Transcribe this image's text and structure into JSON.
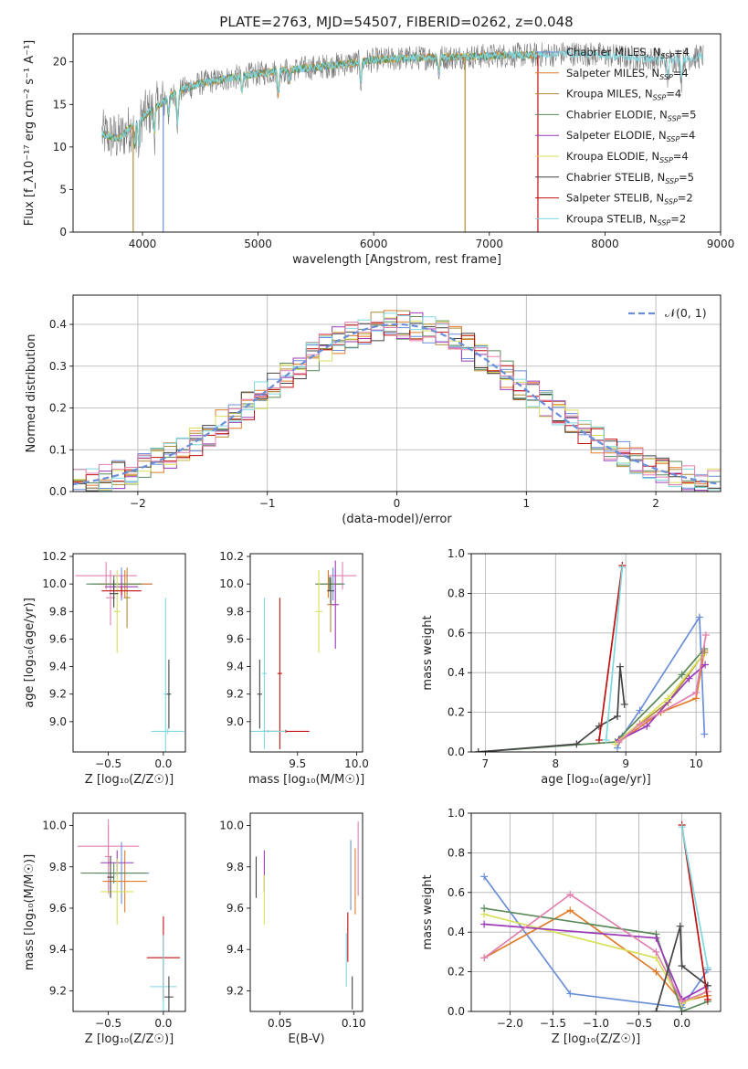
{
  "title": "PLATE=2763, MJD=54507, FIBERID=0262, z=0.048",
  "colors": {
    "cm": "#6a8fd8",
    "sm": "#e07b2a",
    "km": "#b08a3a",
    "ce": "#5a8a5a",
    "se": "#9a3ab8",
    "ke": "#d8e05a",
    "cs": "#444444",
    "ss": "#c01010",
    "ks": "#7fd8e0",
    "pink": "#e080b0",
    "grid": "#b0b0b0"
  },
  "chart_data": [
    {
      "type": "line",
      "id": "spectrum",
      "xlabel": "wavelength [Angstrom, rest frame]",
      "ylabel": "Flux [f_λ10⁻¹⁷ erg cm⁻² s⁻¹ A⁻¹]",
      "xlim": [
        3400,
        9000
      ],
      "ylim": [
        0,
        23.3
      ],
      "xticks": [
        4000,
        5000,
        6000,
        7000,
        8000,
        9000
      ],
      "yticks": [
        0,
        5,
        10,
        15,
        20
      ],
      "grid": false,
      "legend_position": "top-right",
      "legend": [
        {
          "label": "Chabrier MILES, N_SSP=4",
          "key": "cm"
        },
        {
          "label": "Salpeter MILES, N_SSP=4",
          "key": "sm"
        },
        {
          "label": "Kroupa MILES, N_SSP=4",
          "key": "km"
        },
        {
          "label": "Chabrier ELODIE, N_SSP=5",
          "key": "ce"
        },
        {
          "label": "Salpeter ELODIE, N_SSP=4",
          "key": "se"
        },
        {
          "label": "Kroupa ELODIE, N_SSP=4",
          "key": "ke"
        },
        {
          "label": "Chabrier STELIB, N_SSP=5",
          "key": "cs"
        },
        {
          "label": "Salpeter STELIB, N_SSP=2",
          "key": "ss"
        },
        {
          "label": "Kroupa STELIB, N_SSP=2",
          "key": "ks"
        }
      ],
      "continuum": [
        [
          3650,
          11.5
        ],
        [
          3800,
          11
        ],
        [
          3950,
          13
        ],
        [
          4100,
          14.5
        ],
        [
          4300,
          16.5
        ],
        [
          4500,
          17.5
        ],
        [
          4800,
          18.2
        ],
        [
          5200,
          19
        ],
        [
          5600,
          19.5
        ],
        [
          6000,
          20.2
        ],
        [
          6400,
          20.5
        ],
        [
          6800,
          20.6
        ],
        [
          7200,
          20.8
        ],
        [
          7420,
          20.8
        ],
        [
          7700,
          21
        ],
        [
          8000,
          20.8
        ],
        [
          8300,
          20.4
        ],
        [
          8600,
          20.2
        ],
        [
          8850,
          20.7
        ]
      ],
      "absorption_lines": [
        [
          3934,
          3
        ],
        [
          3969,
          3.5
        ],
        [
          4102,
          3
        ],
        [
          4227,
          2
        ],
        [
          4304,
          4
        ],
        [
          4861,
          2
        ],
        [
          5175,
          3
        ],
        [
          5270,
          1.5
        ],
        [
          5890,
          2.5
        ],
        [
          6563,
          2
        ],
        [
          8542,
          2.5
        ],
        [
          8662,
          2.5
        ]
      ],
      "full_drops": [
        {
          "x": 3920,
          "key": "km"
        },
        {
          "x": 4180,
          "key": "cm"
        },
        {
          "x": 6790,
          "key": "km"
        },
        {
          "x": 7420,
          "key": "ss"
        }
      ],
      "model_end": 7420,
      "noise_amplitude": 1.5
    },
    {
      "type": "histogram",
      "id": "residuals",
      "xlabel": "(data-model)/error",
      "ylabel": "Normed distribution",
      "xlim": [
        -2.5,
        2.5
      ],
      "ylim": [
        0,
        0.47
      ],
      "xticks": [
        -2,
        -1,
        0,
        1,
        2
      ],
      "yticks": [
        0.0,
        0.1,
        0.2,
        0.3,
        0.4
      ],
      "grid": true,
      "bin_width": 0.1,
      "reference_curve": {
        "label": "𝒩(0, 1)",
        "mean": 0,
        "sigma": 1,
        "peak": 0.4,
        "style": "dashed"
      },
      "legend_position": "top-right"
    },
    {
      "type": "scatter",
      "id": "age_vs_Z",
      "xlabel": "Z [log₁₀(Z/Z☉)]",
      "ylabel": "age  [log₁₀(age/yr)]",
      "xlim": [
        -0.82,
        0.2
      ],
      "ylim": [
        8.78,
        10.22
      ],
      "xticks": [
        -0.5,
        0.0
      ],
      "yticks": [
        9.0,
        9.2,
        9.4,
        9.6,
        9.8,
        10.0,
        10.2
      ],
      "grid": false,
      "points": [
        {
          "x": -0.52,
          "y": 10.06,
          "xerr": 0.28,
          "yerr": 0.1,
          "key": "pink"
        },
        {
          "x": -0.48,
          "y": 9.9,
          "xerr": 0.04,
          "yerr": 0.2,
          "key": "pink"
        },
        {
          "x": -0.38,
          "y": 10.0,
          "xerr": 0.28,
          "yerr": 0.12,
          "key": "cm"
        },
        {
          "x": -0.35,
          "y": 10.0,
          "xerr": 0.25,
          "yerr": 0.1,
          "key": "sm"
        },
        {
          "x": -0.33,
          "y": 9.9,
          "xerr": 0.03,
          "yerr": 0.22,
          "key": "km"
        },
        {
          "x": -0.45,
          "y": 10.0,
          "xerr": 0.25,
          "yerr": 0.06,
          "key": "ce"
        },
        {
          "x": -0.38,
          "y": 9.98,
          "xerr": 0.15,
          "yerr": 0.08,
          "key": "se"
        },
        {
          "x": -0.42,
          "y": 9.8,
          "xerr": 0.03,
          "yerr": 0.3,
          "key": "ke"
        },
        {
          "x": -0.45,
          "y": 9.93,
          "xerr": 0.04,
          "yerr": 0.1,
          "key": "cs"
        },
        {
          "x": -0.38,
          "y": 9.95,
          "xerr": 0.18,
          "yerr": 0.03,
          "key": "ss"
        },
        {
          "x": 0.02,
          "y": 9.2,
          "xerr": 0.02,
          "yerr": 0.7,
          "key": "ks"
        },
        {
          "x": 0.05,
          "y": 9.2,
          "xerr": 0.02,
          "yerr": 0.25,
          "key": "cs"
        },
        {
          "x": 0.04,
          "y": 8.93,
          "xerr": 0.15,
          "yerr": 0.02,
          "key": "ks"
        }
      ]
    },
    {
      "type": "scatter",
      "id": "age_vs_mass",
      "xlabel": "mass [log₁₀(M/M☉)]",
      "ylabel": "",
      "xlim": [
        9.1,
        10.05
      ],
      "ylim": [
        8.78,
        10.22
      ],
      "xticks": [
        9.5,
        10.0
      ],
      "yticks": [
        9.0,
        9.2,
        9.4,
        9.6,
        9.8,
        10.0,
        10.2
      ],
      "grid": false,
      "points": [
        {
          "x": 9.88,
          "y": 10.06,
          "xerr": 0.12,
          "yerr": 0.1,
          "key": "pink"
        },
        {
          "x": 9.8,
          "y": 10.0,
          "xerr": 0.1,
          "yerr": 0.12,
          "key": "cm"
        },
        {
          "x": 9.76,
          "y": 10.0,
          "xerr": 0.1,
          "yerr": 0.1,
          "key": "sm"
        },
        {
          "x": 9.78,
          "y": 9.85,
          "xerr": 0.03,
          "yerr": 0.2,
          "key": "km"
        },
        {
          "x": 9.77,
          "y": 10.0,
          "xerr": 0.12,
          "yerr": 0.05,
          "key": "ce"
        },
        {
          "x": 9.82,
          "y": 9.85,
          "xerr": 0.03,
          "yerr": 0.32,
          "key": "se"
        },
        {
          "x": 9.68,
          "y": 9.8,
          "xerr": 0.03,
          "yerr": 0.3,
          "key": "ke"
        },
        {
          "x": 9.78,
          "y": 9.95,
          "xerr": 0.03,
          "yerr": 0.1,
          "key": "cs"
        },
        {
          "x": 9.35,
          "y": 9.35,
          "xerr": 0.02,
          "yerr": 0.55,
          "key": "ss"
        },
        {
          "x": 9.22,
          "y": 9.35,
          "xerr": 0.02,
          "yerr": 0.55,
          "key": "ks"
        },
        {
          "x": 9.18,
          "y": 9.2,
          "xerr": 0.02,
          "yerr": 0.25,
          "key": "cs"
        },
        {
          "x": 9.4,
          "y": 8.93,
          "xerr": 0.2,
          "yerr": 0.01,
          "key": "ss"
        },
        {
          "x": 9.25,
          "y": 8.93,
          "xerr": 0.15,
          "yerr": 0.01,
          "key": "ks"
        }
      ]
    },
    {
      "type": "line",
      "id": "massweight_vs_age",
      "xlabel": "age  [log₁₀(age/yr)]",
      "ylabel": "mass weight",
      "xlim": [
        6.8,
        10.35
      ],
      "ylim": [
        0,
        1.0
      ],
      "xticks": [
        7,
        8,
        9,
        10
      ],
      "yticks": [
        0.0,
        0.2,
        0.4,
        0.6,
        0.8,
        1.0
      ],
      "grid": true,
      "series": [
        {
          "key": "cm",
          "points": [
            [
              8.88,
              0.02
            ],
            [
              8.95,
              0.08
            ],
            [
              9.2,
              0.21
            ],
            [
              10.05,
              0.68
            ],
            [
              10.12,
              0.09
            ]
          ]
        },
        {
          "key": "sm",
          "points": [
            [
              8.9,
              0.05
            ],
            [
              9.5,
              0.2
            ],
            [
              10.0,
              0.27
            ],
            [
              10.12,
              0.51
            ]
          ]
        },
        {
          "key": "km",
          "points": [
            [
              8.9,
              0.06
            ],
            [
              9.6,
              0.25
            ],
            [
              10.12,
              0.5
            ]
          ]
        },
        {
          "key": "ce",
          "points": [
            [
              6.9,
              0.0
            ],
            [
              8.85,
              0.05
            ],
            [
              9.8,
              0.39
            ],
            [
              10.12,
              0.52
            ]
          ]
        },
        {
          "key": "se",
          "points": [
            [
              8.9,
              0.06
            ],
            [
              9.3,
              0.13
            ],
            [
              9.9,
              0.37
            ],
            [
              10.13,
              0.44
            ]
          ]
        },
        {
          "key": "ke",
          "points": [
            [
              8.85,
              0.04
            ],
            [
              9.6,
              0.27
            ],
            [
              10.1,
              0.49
            ]
          ]
        },
        {
          "key": "pink",
          "points": [
            [
              8.9,
              0.05
            ],
            [
              9.2,
              0.14
            ],
            [
              10.0,
              0.3
            ],
            [
              10.14,
              0.59
            ]
          ]
        },
        {
          "key": "cs",
          "points": [
            [
              6.9,
              0.0
            ],
            [
              8.3,
              0.04
            ],
            [
              8.62,
              0.13
            ],
            [
              8.88,
              0.18
            ],
            [
              8.92,
              0.43
            ],
            [
              8.98,
              0.24
            ]
          ]
        },
        {
          "key": "ss",
          "points": [
            [
              8.62,
              0.06
            ],
            [
              8.95,
              0.94
            ]
          ]
        },
        {
          "key": "ks",
          "points": [
            [
              8.72,
              0.06
            ],
            [
              8.95,
              0.93
            ]
          ]
        }
      ]
    },
    {
      "type": "scatter",
      "id": "mass_vs_Z",
      "xlabel": "Z [log₁₀(Z/Z☉)]",
      "ylabel": "mass [log₁₀(M/M☉)]",
      "xlim": [
        -0.82,
        0.2
      ],
      "ylim": [
        9.1,
        10.06
      ],
      "xticks": [
        -0.5,
        0.0
      ],
      "yticks": [
        9.2,
        9.4,
        9.6,
        9.8,
        10.0
      ],
      "grid": false,
      "points": [
        {
          "x": -0.5,
          "y": 9.9,
          "xerr": 0.28,
          "yerr": 0.1,
          "key": "pink"
        },
        {
          "x": -0.5,
          "y": 9.85,
          "xerr": 0.03,
          "yerr": 0.18,
          "key": "pink"
        },
        {
          "x": -0.38,
          "y": 9.77,
          "xerr": 0.25,
          "yerr": 0.15,
          "key": "cm"
        },
        {
          "x": -0.35,
          "y": 9.73,
          "xerr": 0.2,
          "yerr": 0.15,
          "key": "sm"
        },
        {
          "x": -0.45,
          "y": 9.77,
          "xerr": 0.3,
          "yerr": 0.05,
          "key": "ce"
        },
        {
          "x": -0.42,
          "y": 9.82,
          "xerr": 0.15,
          "yerr": 0.06,
          "key": "se"
        },
        {
          "x": -0.42,
          "y": 9.68,
          "xerr": 0.15,
          "yerr": 0.16,
          "key": "ke"
        },
        {
          "x": -0.48,
          "y": 9.75,
          "xerr": 0.03,
          "yerr": 0.1,
          "key": "cs"
        },
        {
          "x": 0.0,
          "y": 9.36,
          "xerr": 0.15,
          "yerr": 0.2,
          "key": "ss"
        },
        {
          "x": 0.0,
          "y": 9.22,
          "xerr": 0.12,
          "yerr": 0.25,
          "key": "ks"
        },
        {
          "x": 0.05,
          "y": 9.17,
          "xerr": 0.04,
          "yerr": 0.1,
          "key": "cs"
        }
      ]
    },
    {
      "type": "scatter",
      "id": "mass_vs_ebv",
      "xlabel": "E(B-V)",
      "ylabel": "",
      "xlim": [
        0.03,
        0.106
      ],
      "ylim": [
        9.1,
        10.06
      ],
      "xticks": [
        0.05,
        0.1
      ],
      "yticks": [
        9.2,
        9.4,
        9.6,
        9.8,
        10.0
      ],
      "grid": false,
      "points": [
        {
          "x": 0.034,
          "y": 9.75,
          "xerr": 0,
          "yerr": 0.1,
          "key": "cs"
        },
        {
          "x": 0.0395,
          "y": 9.78,
          "xerr": 0,
          "yerr": 0.1,
          "key": "se"
        },
        {
          "x": 0.0395,
          "y": 9.64,
          "xerr": 0,
          "yerr": 0.12,
          "key": "ke"
        },
        {
          "x": 0.098,
          "y": 9.76,
          "xerr": 0,
          "yerr": 0.17,
          "key": "cm"
        },
        {
          "x": 0.101,
          "y": 9.73,
          "xerr": 0,
          "yerr": 0.16,
          "key": "sm"
        },
        {
          "x": 0.103,
          "y": 9.84,
          "xerr": 0,
          "yerr": 0.18,
          "key": "pink"
        },
        {
          "x": 0.096,
          "y": 9.46,
          "xerr": 0,
          "yerr": 0.12,
          "key": "ss"
        },
        {
          "x": 0.095,
          "y": 9.35,
          "xerr": 0,
          "yerr": 0.13,
          "key": "ks"
        },
        {
          "x": 0.099,
          "y": 9.19,
          "xerr": 0,
          "yerr": 0.08,
          "key": "cs"
        }
      ]
    },
    {
      "type": "line",
      "id": "massweight_vs_Z",
      "xlabel": "Z [log₁₀(Z/Z☉)]",
      "ylabel": "mass weight",
      "xlim": [
        -2.45,
        0.45
      ],
      "ylim": [
        0,
        1.0
      ],
      "xticks": [
        -2.0,
        -1.5,
        -1.0,
        -0.5,
        0.0
      ],
      "yticks": [
        0.0,
        0.2,
        0.4,
        0.6,
        0.8,
        1.0
      ],
      "grid": true,
      "series": [
        {
          "key": "cm",
          "points": [
            [
              -2.3,
              0.68
            ],
            [
              -1.3,
              0.09
            ],
            [
              0.0,
              0.02
            ],
            [
              0.3,
              0.21
            ]
          ]
        },
        {
          "key": "sm",
          "points": [
            [
              -2.3,
              0.27
            ],
            [
              -1.3,
              0.51
            ],
            [
              -0.3,
              0.2
            ],
            [
              0.0,
              0.05
            ],
            [
              0.3,
              0.08
            ]
          ]
        },
        {
          "key": "ke",
          "points": [
            [
              -2.3,
              0.49
            ],
            [
              -0.3,
              0.27
            ],
            [
              0.0,
              0.04
            ],
            [
              0.3,
              0.1
            ]
          ]
        },
        {
          "key": "ce",
          "points": [
            [
              -2.3,
              0.52
            ],
            [
              -0.3,
              0.39
            ],
            [
              0.0,
              0.0
            ],
            [
              0.3,
              0.05
            ]
          ]
        },
        {
          "key": "se",
          "points": [
            [
              -2.3,
              0.44
            ],
            [
              -0.3,
              0.37
            ],
            [
              0.0,
              0.06
            ],
            [
              0.3,
              0.13
            ]
          ]
        },
        {
          "key": "pink",
          "points": [
            [
              -2.3,
              0.27
            ],
            [
              -1.3,
              0.59
            ],
            [
              -0.3,
              0.3
            ],
            [
              0.0,
              0.05
            ],
            [
              0.3,
              0.1
            ]
          ]
        },
        {
          "key": "cs",
          "points": [
            [
              -0.3,
              0.0
            ],
            [
              -0.02,
              0.43
            ],
            [
              0.0,
              0.23
            ],
            [
              0.3,
              0.13
            ]
          ]
        },
        {
          "key": "ss",
          "points": [
            [
              0.0,
              0.94
            ],
            [
              0.3,
              0.06
            ]
          ]
        },
        {
          "key": "ks",
          "points": [
            [
              0.0,
              0.93
            ],
            [
              0.3,
              0.22
            ]
          ]
        }
      ]
    }
  ]
}
